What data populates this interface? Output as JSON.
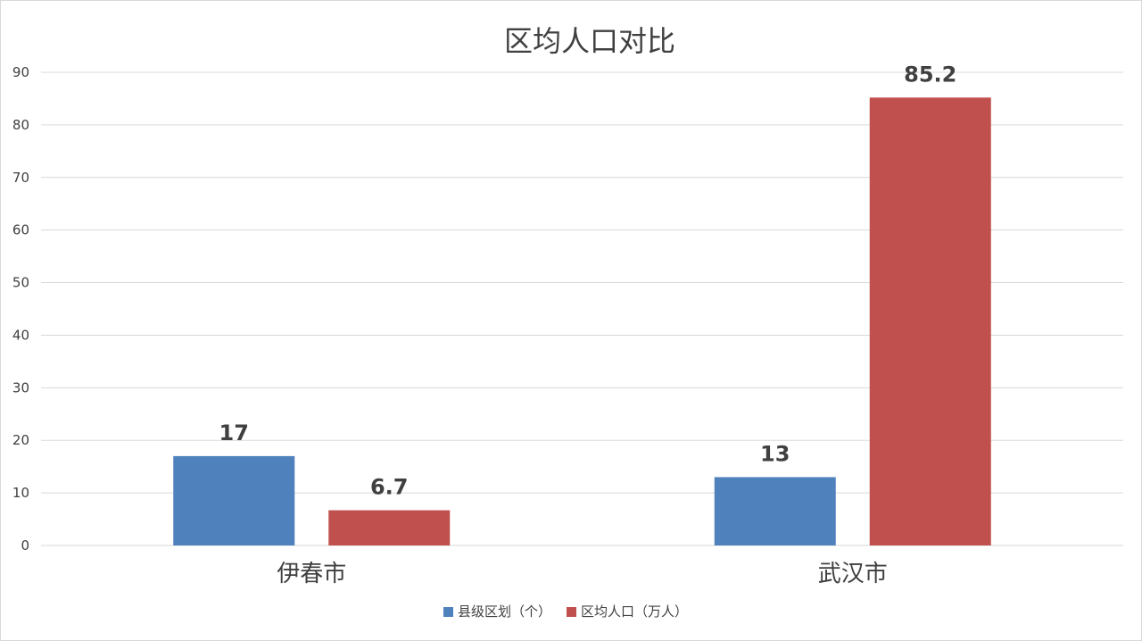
{
  "chart_data": {
    "type": "bar",
    "title": "区均人口对比",
    "categories": [
      "伊春市",
      "武汉市"
    ],
    "series": [
      {
        "name": "县级区划（个）",
        "color": "#4f81bd",
        "values": [
          17,
          13
        ]
      },
      {
        "name": "区均人口（万人）",
        "color": "#c0504d",
        "values": [
          6.7,
          85.2
        ]
      }
    ],
    "ylim": [
      0,
      90
    ],
    "yticks": [
      0,
      10,
      20,
      30,
      40,
      50,
      60,
      70,
      80,
      90
    ],
    "grid": true,
    "legend": "bottom-center",
    "data_labels": true
  }
}
